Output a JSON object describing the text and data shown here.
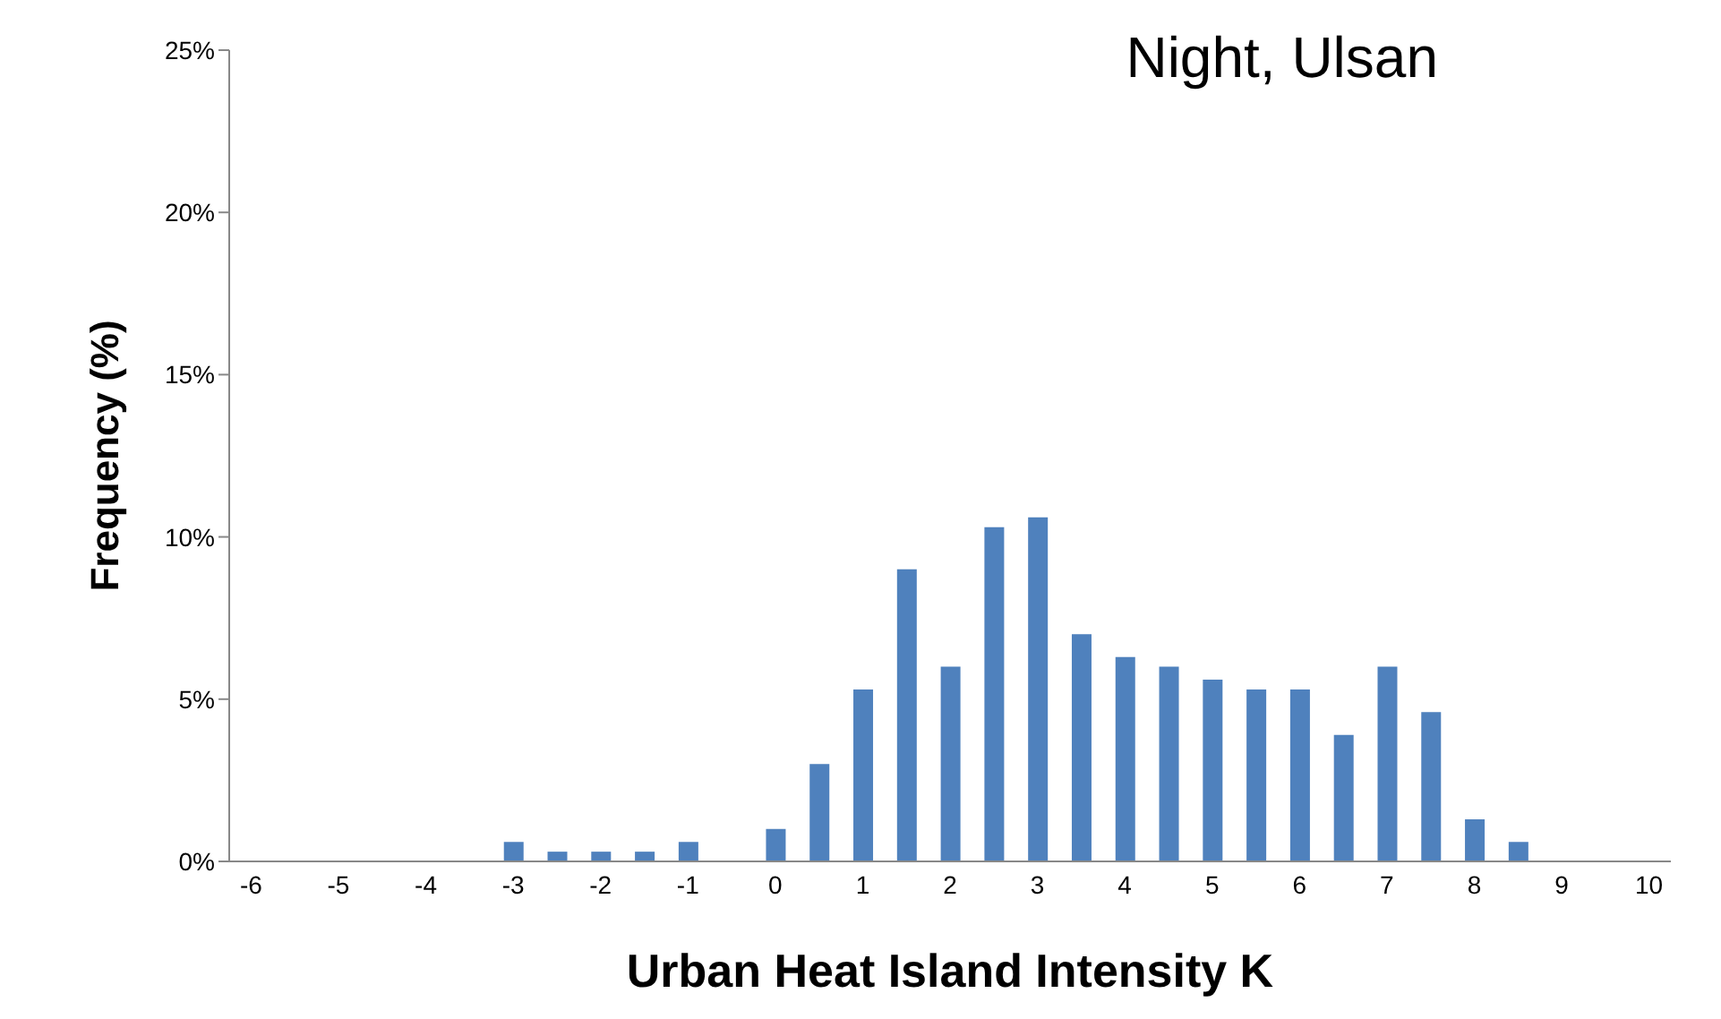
{
  "chart_data": {
    "type": "bar",
    "title": "Night, Ulsan",
    "xlabel": "Urban Heat Island Intensity K",
    "ylabel": "Frequency (%)",
    "categories": [
      "-6",
      null,
      "-5",
      null,
      "-4",
      null,
      "-3",
      null,
      "-2",
      null,
      "-1",
      null,
      "0",
      null,
      "1",
      null,
      "2",
      null,
      "3",
      null,
      "4",
      null,
      "5",
      null,
      "6",
      null,
      "7",
      null,
      "8",
      null,
      "9",
      null,
      "10"
    ],
    "values": [
      0,
      0,
      0,
      0,
      0,
      0,
      0.6,
      0.3,
      0.3,
      0.3,
      0.6,
      0,
      1.0,
      3.0,
      5.3,
      9.0,
      6.0,
      10.3,
      10.6,
      7.0,
      6.3,
      6.0,
      5.6,
      5.3,
      5.3,
      3.9,
      6.0,
      4.6,
      1.3,
      0.6,
      0,
      0,
      0
    ],
    "color": "#4f81bd",
    "ylim": [
      0,
      25
    ],
    "yticks": [
      {
        "value": 0,
        "label": "0%"
      },
      {
        "value": 5,
        "label": "5%"
      },
      {
        "value": 10,
        "label": "10%"
      },
      {
        "value": 15,
        "label": "15%"
      },
      {
        "value": 20,
        "label": "20%"
      },
      {
        "value": 25,
        "label": "25%"
      }
    ],
    "grid": false
  }
}
